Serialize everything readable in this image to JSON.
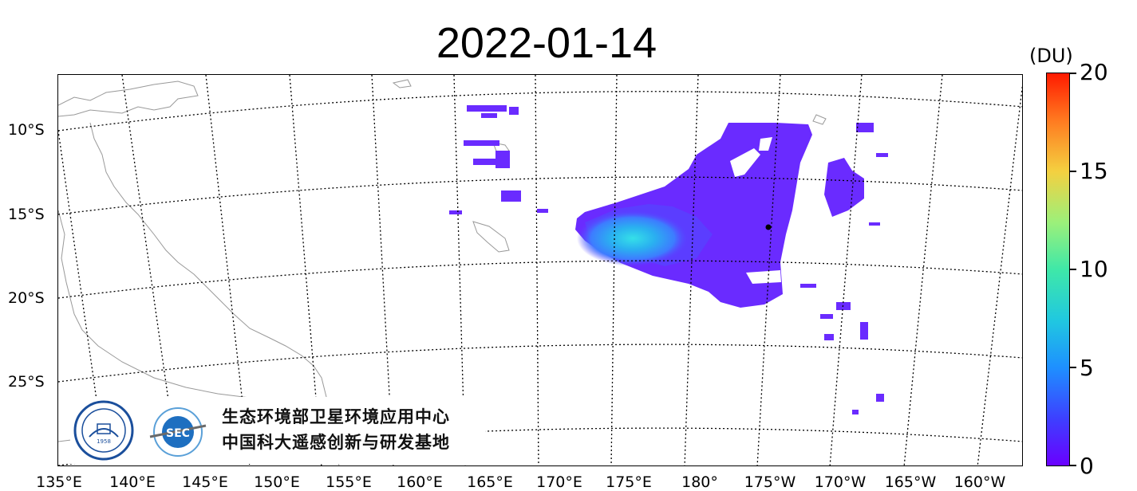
{
  "title": "2022-01-14",
  "colorbar": {
    "unit": "(DU)",
    "ticks": [
      "20",
      "15",
      "10",
      "5",
      "0"
    ],
    "colormap": "rainbow",
    "min": 0,
    "max": 20
  },
  "lat_labels": [
    "10°S",
    "15°S",
    "20°S",
    "25°S"
  ],
  "lon_labels": [
    "135°E",
    "140°E",
    "145°E",
    "150°E",
    "155°E",
    "160°E",
    "165°E",
    "170°E",
    "175°E",
    "180°",
    "175°W",
    "170°W",
    "165°W",
    "160°W"
  ],
  "logo": {
    "line1": "生态环境部卫星环境应用中心",
    "line2": "中国科大遥感创新与研发基地",
    "badge": "SEC",
    "seal_year": "1958"
  },
  "colors": {
    "plume_low": "#6a2bff",
    "plume_mid": "#3b6cff",
    "plume_high": "#28c8e8"
  },
  "marker": "black-dot"
}
